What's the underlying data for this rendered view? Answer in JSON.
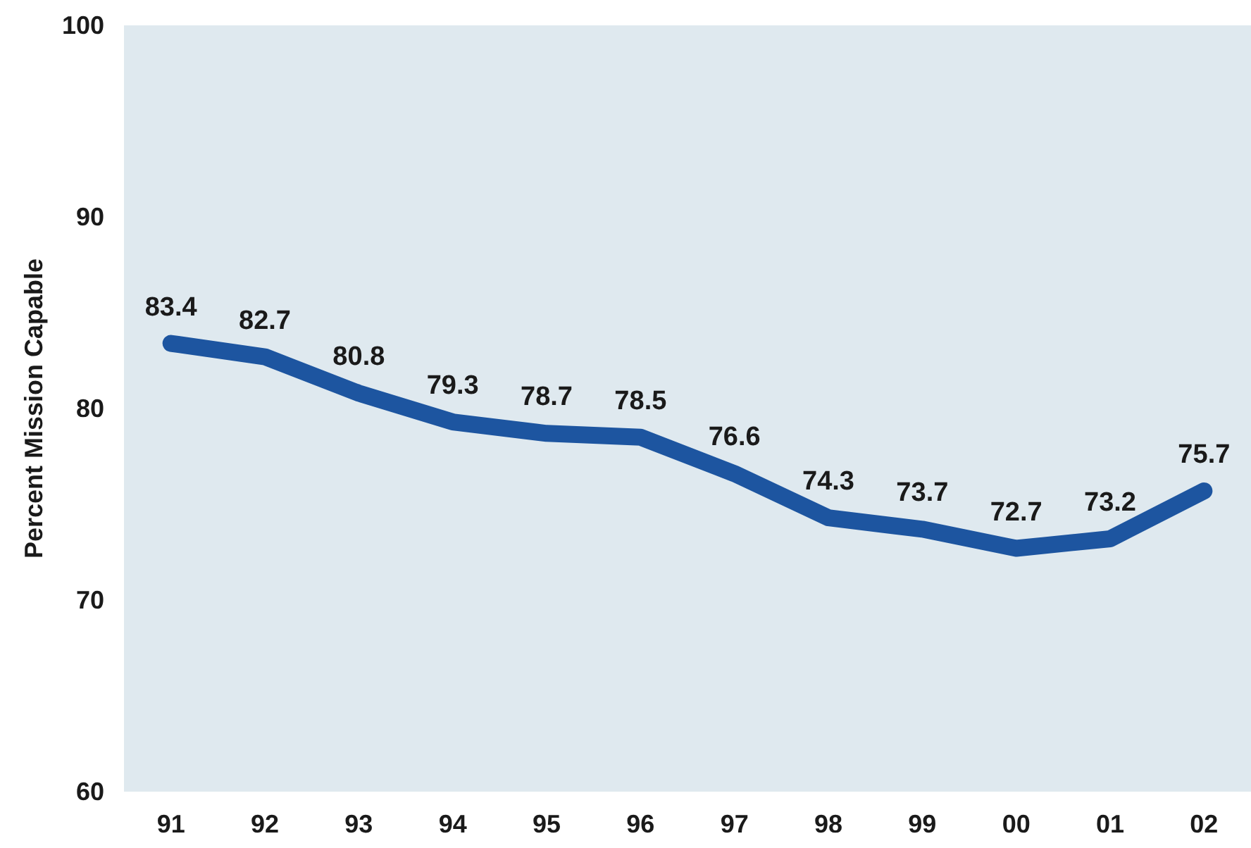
{
  "chart_data": {
    "type": "line",
    "ylabel": "Percent Mission Capable",
    "categories": [
      "91",
      "92",
      "93",
      "94",
      "95",
      "96",
      "97",
      "98",
      "99",
      "00",
      "01",
      "02"
    ],
    "series": [
      {
        "color": "#1d55a0",
        "values": [
          83.4,
          82.7,
          80.8,
          79.3,
          78.7,
          78.5,
          76.6,
          74.3,
          73.7,
          72.7,
          73.2,
          75.7
        ]
      }
    ],
    "ylim": [
      60,
      100
    ],
    "yticks": [
      60,
      70,
      80,
      90,
      100
    ],
    "grid": false,
    "marker": "none",
    "line_style": "solid",
    "data_labels": true
  }
}
